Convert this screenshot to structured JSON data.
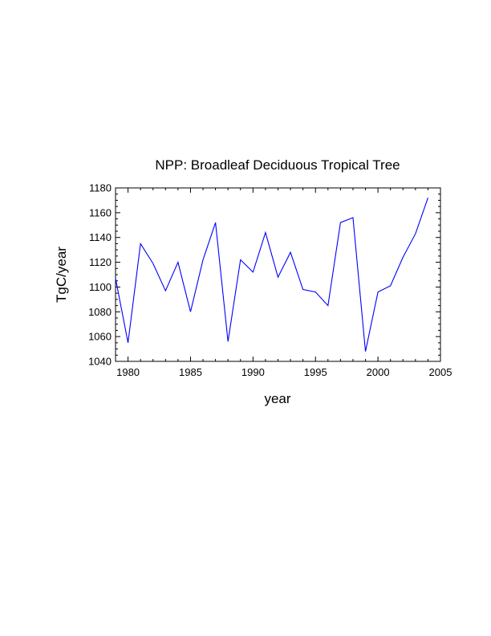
{
  "chart_data": {
    "type": "line",
    "title": "NPP: Broadleaf Deciduous Tropical Tree",
    "xlabel": "year",
    "ylabel": "TgC/year",
    "xlim": [
      1979,
      2005
    ],
    "ylim": [
      1040,
      1180
    ],
    "x_ticks": [
      1980,
      1985,
      1990,
      1995,
      2000,
      2005
    ],
    "y_ticks": [
      1040,
      1060,
      1080,
      1100,
      1120,
      1140,
      1160,
      1180
    ],
    "line_color": "#0000ff",
    "grid": false,
    "series": [
      {
        "x": [
          1979,
          1980,
          1981,
          1982,
          1983,
          1984,
          1985,
          1986,
          1987,
          1988,
          1989,
          1990,
          1991,
          1992,
          1993,
          1994,
          1995,
          1996,
          1997,
          1998,
          1999,
          2000,
          2001,
          2002,
          2003,
          2004
        ],
        "values": [
          1107,
          1055,
          1135,
          1119,
          1097,
          1120,
          1080,
          1122,
          1152,
          1056,
          1122,
          1112,
          1144,
          1108,
          1128,
          1098,
          1096,
          1085,
          1152,
          1156,
          1048,
          1096,
          1101,
          1124,
          1143,
          1172
        ]
      }
    ]
  }
}
